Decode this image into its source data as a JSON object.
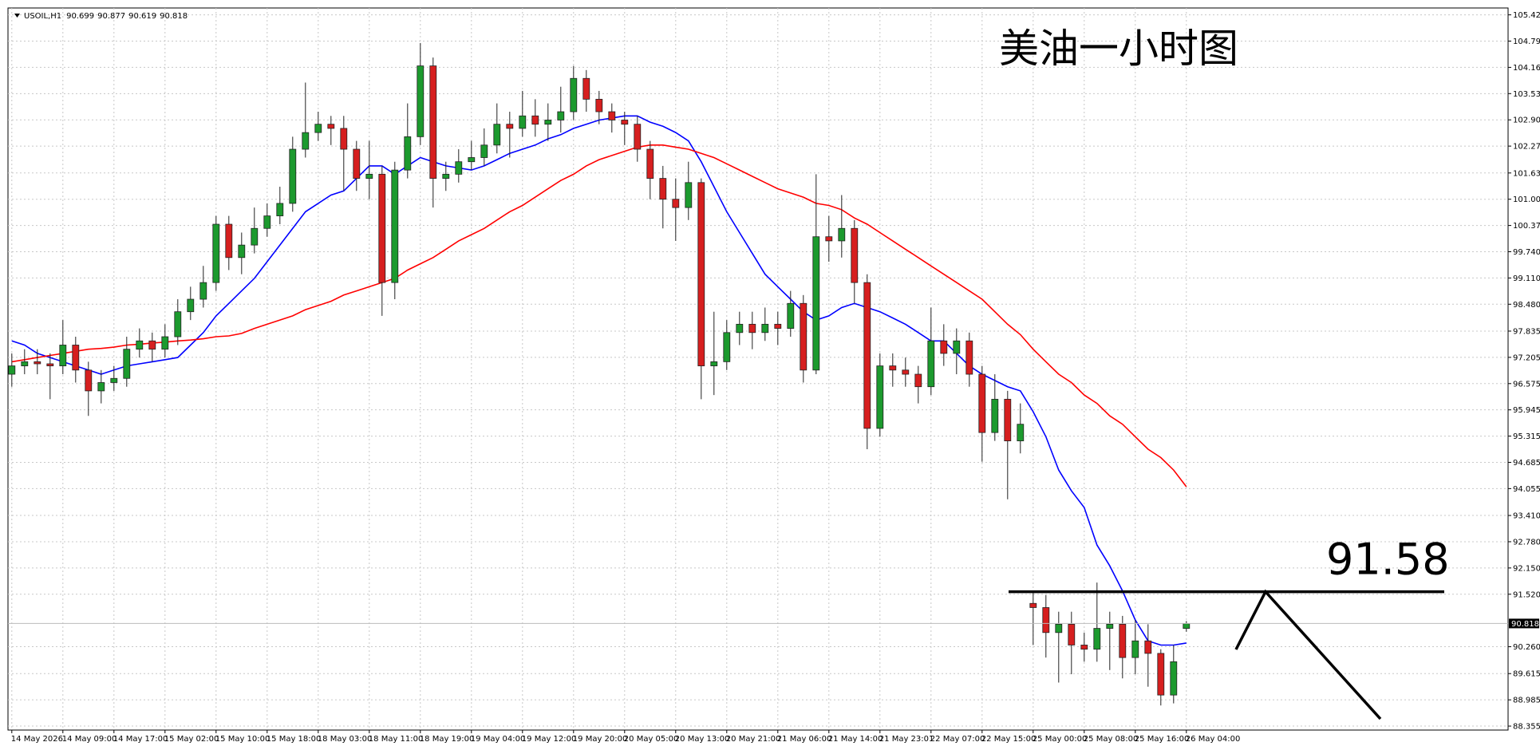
{
  "chart_data": {
    "type": "candlestick",
    "symbol": "USOIL,H1",
    "title": "美油一小时图",
    "level": 91.58,
    "up_color": "#1c9a2e",
    "down_color": "#d61f1f",
    "grid": true,
    "ylim": [
      88.26,
      105.59
    ],
    "yticks": [
      105.425,
      104.795,
      104.165,
      103.535,
      102.905,
      102.275,
      {
        "value": 101.63,
        "label": "101.630"
      },
      {
        "value": 101.0,
        "label": "101.000"
      },
      {
        "value": 100.37,
        "label": "100.370"
      },
      {
        "value": 99.74,
        "label": "99.740"
      },
      {
        "value": 99.11,
        "label": "99.110"
      },
      {
        "value": 98.48,
        "label": "98.480"
      },
      97.835,
      97.205,
      96.575,
      95.945,
      95.315,
      94.685,
      94.055,
      {
        "value": 93.41,
        "label": "93.410"
      },
      {
        "value": 92.78,
        "label": "92.780"
      },
      {
        "value": 92.15,
        "label": "92.150"
      },
      {
        "value": 91.52,
        "label": "91.520"
      },
      {
        "value": 90.26,
        "label": "90.260"
      },
      89.615,
      88.985,
      88.355
    ],
    "categories": [
      "14 May 2026",
      null,
      null,
      null,
      "14 May 09:00",
      null,
      null,
      null,
      "14 May 17:00",
      null,
      null,
      null,
      "15 May 02:00",
      null,
      null,
      null,
      "15 May 10:00",
      null,
      null,
      null,
      "15 May 18:00",
      null,
      null,
      null,
      "18 May 03:00",
      null,
      null,
      null,
      "18 May 11:00",
      null,
      null,
      null,
      "18 May 19:00",
      null,
      null,
      null,
      "19 May 04:00",
      null,
      null,
      null,
      "19 May 12:00",
      null,
      null,
      null,
      "19 May 20:00",
      null,
      null,
      null,
      "20 May 05:00",
      null,
      null,
      null,
      "20 May 13:00",
      null,
      null,
      null,
      "20 May 21:00",
      null,
      null,
      null,
      "21 May 06:00",
      null,
      null,
      null,
      "21 May 14:00",
      null,
      null,
      null,
      "21 May 23:01",
      null,
      null,
      null,
      "22 May 07:00",
      null,
      null,
      null,
      "22 May 15:00",
      null,
      null,
      null,
      "25 May 00:00",
      null,
      null,
      null,
      "25 May 08:00",
      null,
      null,
      null,
      "25 May 16:00",
      null,
      null,
      null,
      "26 May 04:00"
    ],
    "candles": {
      "open": [
        96.8,
        97.0,
        97.1,
        97.05,
        97.0,
        97.5,
        96.9,
        96.4,
        96.6,
        96.7,
        97.4,
        97.6,
        97.4,
        97.7,
        98.3,
        98.6,
        99.0,
        100.4,
        99.6,
        99.9,
        100.3,
        100.6,
        100.9,
        102.2,
        102.6,
        102.8,
        102.7,
        102.2,
        101.5,
        101.6,
        99.0,
        101.7,
        102.5,
        104.2,
        101.5,
        101.6,
        101.9,
        102.0,
        102.3,
        102.8,
        102.7,
        103.0,
        102.8,
        102.9,
        103.1,
        103.9,
        103.4,
        103.1,
        102.9,
        102.8,
        102.2,
        101.5,
        101.0,
        100.8,
        101.4,
        97.0,
        97.1,
        97.8,
        98.0,
        97.8,
        98.0,
        97.9,
        98.5,
        96.9,
        100.1,
        100.0,
        100.3,
        99.0,
        95.5,
        97.0,
        96.9,
        96.8,
        96.5,
        97.6,
        97.3,
        97.6,
        96.8,
        95.4,
        96.2,
        95.2,
        91.3,
        91.2,
        90.6,
        90.8,
        90.3,
        90.2,
        90.7,
        90.8,
        90.0,
        90.4,
        90.1,
        89.1,
        90.699
      ],
      "high": [
        97.3,
        97.4,
        97.4,
        97.3,
        98.1,
        97.7,
        97.1,
        96.9,
        97.0,
        97.7,
        97.9,
        97.8,
        98.0,
        98.6,
        98.9,
        99.4,
        100.6,
        100.6,
        100.2,
        100.8,
        100.9,
        101.3,
        102.5,
        103.8,
        103.1,
        103.0,
        103.0,
        102.4,
        102.4,
        101.8,
        101.9,
        103.3,
        104.75,
        104.4,
        101.9,
        102.2,
        102.4,
        102.7,
        103.3,
        103.1,
        103.6,
        103.4,
        103.3,
        103.7,
        104.2,
        104.1,
        103.6,
        103.3,
        103.1,
        103.0,
        102.4,
        101.8,
        101.5,
        101.9,
        101.5,
        98.3,
        98.1,
        98.3,
        98.3,
        98.4,
        98.3,
        98.8,
        98.7,
        101.6,
        100.6,
        101.1,
        100.5,
        99.2,
        97.3,
        97.3,
        97.2,
        97.0,
        98.4,
        98.0,
        97.9,
        97.8,
        97.0,
        96.8,
        96.4,
        96.1,
        91.6,
        91.5,
        91.1,
        91.1,
        90.6,
        91.8,
        91.1,
        91.0,
        90.9,
        90.8,
        90.2,
        90.3,
        90.877
      ],
      "low": [
        96.5,
        96.8,
        96.8,
        96.2,
        96.8,
        96.6,
        95.8,
        96.1,
        96.4,
        96.5,
        97.2,
        97.1,
        97.2,
        97.5,
        98.1,
        98.4,
        98.8,
        99.3,
        99.2,
        99.7,
        100.1,
        100.4,
        100.7,
        102.0,
        102.4,
        102.3,
        101.2,
        101.2,
        101.0,
        98.2,
        98.6,
        101.5,
        102.3,
        100.8,
        101.2,
        101.4,
        101.7,
        101.8,
        102.1,
        102.0,
        102.5,
        102.5,
        102.4,
        102.6,
        102.9,
        103.1,
        102.8,
        102.6,
        102.3,
        101.9,
        101.0,
        100.3,
        100.0,
        100.5,
        96.2,
        96.3,
        96.9,
        97.5,
        97.4,
        97.6,
        97.5,
        97.7,
        96.6,
        96.8,
        99.5,
        99.6,
        98.5,
        95.0,
        95.3,
        96.5,
        96.5,
        96.1,
        96.3,
        97.0,
        96.8,
        96.5,
        94.7,
        95.2,
        93.8,
        94.9,
        90.3,
        90.0,
        89.4,
        89.6,
        89.9,
        89.9,
        89.7,
        89.5,
        89.6,
        89.3,
        88.85,
        88.9,
        90.619
      ],
      "close": [
        97.0,
        97.1,
        97.05,
        97.0,
        97.5,
        96.9,
        96.4,
        96.6,
        96.7,
        97.4,
        97.6,
        97.4,
        97.7,
        98.3,
        98.6,
        99.0,
        100.4,
        99.6,
        99.9,
        100.3,
        100.6,
        100.9,
        102.2,
        102.6,
        102.8,
        102.7,
        102.2,
        101.5,
        101.6,
        99.0,
        101.7,
        102.5,
        104.2,
        101.5,
        101.6,
        101.9,
        102.0,
        102.3,
        102.8,
        102.7,
        103.0,
        102.8,
        102.9,
        103.1,
        103.9,
        103.4,
        103.1,
        102.9,
        102.8,
        102.2,
        101.5,
        101.0,
        100.8,
        101.4,
        97.0,
        97.1,
        97.8,
        98.0,
        97.8,
        98.0,
        97.9,
        98.5,
        96.9,
        100.1,
        100.0,
        100.3,
        99.0,
        95.5,
        97.0,
        96.9,
        96.8,
        96.5,
        97.6,
        97.3,
        97.6,
        96.8,
        95.4,
        96.2,
        95.2,
        95.6,
        91.2,
        90.6,
        90.8,
        90.3,
        90.2,
        90.7,
        90.8,
        90.0,
        90.4,
        90.1,
        89.1,
        89.9,
        90.818
      ]
    },
    "moving_averages": [
      {
        "color": "#0000ff",
        "values": [
          97.6,
          97.5,
          97.3,
          97.2,
          97.1,
          97.0,
          96.9,
          96.8,
          96.9,
          97.0,
          97.05,
          97.1,
          97.15,
          97.2,
          97.5,
          97.8,
          98.2,
          98.5,
          98.8,
          99.1,
          99.5,
          99.9,
          100.3,
          100.7,
          100.9,
          101.1,
          101.2,
          101.5,
          101.8,
          101.8,
          101.6,
          101.8,
          102.0,
          101.9,
          101.8,
          101.75,
          101.7,
          101.8,
          101.95,
          102.1,
          102.2,
          102.3,
          102.45,
          102.55,
          102.7,
          102.8,
          102.9,
          102.95,
          103.0,
          103.0,
          102.85,
          102.75,
          102.6,
          102.4,
          101.9,
          101.3,
          100.7,
          100.2,
          99.7,
          99.2,
          98.9,
          98.6,
          98.3,
          98.1,
          98.2,
          98.4,
          98.5,
          98.4,
          98.3,
          98.15,
          98.0,
          97.8,
          97.6,
          97.6,
          97.3,
          97.0,
          96.8,
          96.65,
          96.5,
          96.4,
          95.9,
          95.3,
          94.5,
          94.0,
          93.6,
          92.7,
          92.2,
          91.6,
          90.9,
          90.4,
          90.3,
          90.3,
          90.35
        ]
      },
      {
        "color": "#ff0000",
        "values": [
          97.1,
          97.15,
          97.2,
          97.25,
          97.3,
          97.35,
          97.4,
          97.42,
          97.45,
          97.5,
          97.52,
          97.55,
          97.57,
          97.6,
          97.62,
          97.65,
          97.7,
          97.72,
          97.78,
          97.9,
          98.0,
          98.1,
          98.2,
          98.35,
          98.45,
          98.55,
          98.7,
          98.8,
          98.9,
          99.0,
          99.1,
          99.3,
          99.45,
          99.6,
          99.8,
          100.0,
          100.15,
          100.3,
          100.5,
          100.7,
          100.85,
          101.05,
          101.25,
          101.45,
          101.6,
          101.8,
          101.95,
          102.05,
          102.15,
          102.25,
          102.3,
          102.3,
          102.25,
          102.2,
          102.1,
          102.0,
          101.85,
          101.7,
          101.55,
          101.4,
          101.25,
          101.15,
          101.05,
          100.9,
          100.85,
          100.75,
          100.55,
          100.4,
          100.2,
          100.0,
          99.8,
          99.6,
          99.4,
          99.2,
          99.0,
          98.8,
          98.6,
          98.3,
          98.0,
          97.75,
          97.4,
          97.1,
          96.8,
          96.6,
          96.3,
          96.1,
          95.8,
          95.6,
          95.3,
          95.0,
          94.8,
          94.5,
          94.1
        ]
      }
    ]
  }
}
